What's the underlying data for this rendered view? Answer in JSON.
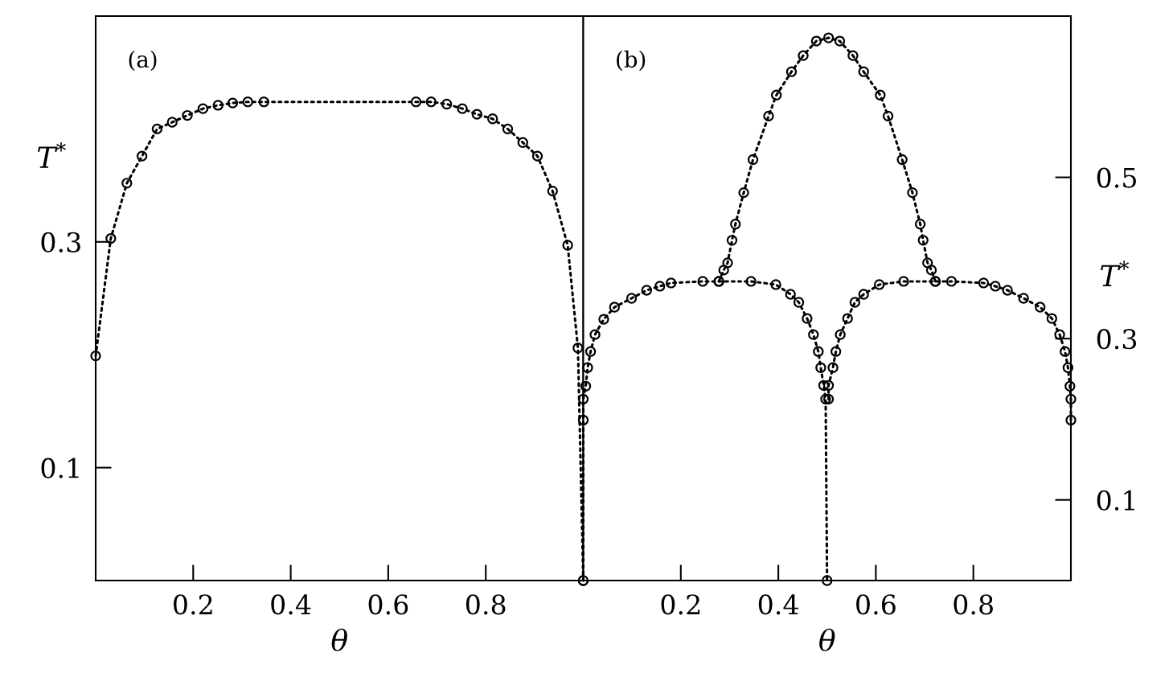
{
  "chart_data": [
    {
      "type": "line",
      "xlabel": "θ",
      "ylabel": "T$^{*}$",
      "annotations": [
        "(a)"
      ],
      "xlim": [
        0,
        1
      ],
      "ylim": [
        0,
        0.5
      ],
      "xticks": [
        0.2,
        0.4,
        0.6,
        0.8
      ],
      "yticks": [
        0.1,
        0.3
      ],
      "marker": "circle",
      "line_style": "dotted",
      "grid": false,
      "legend": false,
      "series": [
        {
          "color": "#000000",
          "x": [
            0,
            0.031,
            0.064,
            0.095,
            0.126,
            0.157,
            0.188,
            0.22,
            0.251,
            0.281,
            0.312,
            0.345,
            0.657,
            0.688,
            0.72,
            0.752,
            0.782,
            0.814,
            0.845,
            0.876,
            0.906,
            0.937,
            0.968,
            0.989,
            1
          ],
          "values": [
            0.199,
            0.303,
            0.352,
            0.376,
            0.4,
            0.406,
            0.412,
            0.418,
            0.421,
            0.423,
            0.424,
            0.424,
            0.424,
            0.424,
            0.422,
            0.418,
            0.413,
            0.409,
            0.4,
            0.388,
            0.376,
            0.345,
            0.297,
            0.206,
            0
          ]
        }
      ]
    },
    {
      "type": "line",
      "xlabel": "θ",
      "ylabel": "T$^{*}$",
      "annotations": [
        "(b)"
      ],
      "xlim": [
        0,
        1
      ],
      "ylim": [
        0,
        0.7
      ],
      "xticks": [
        0.2,
        0.4,
        0.6,
        0.8
      ],
      "yticks": [
        0.1,
        0.3,
        0.5
      ],
      "marker": "circle",
      "line_style": "dotted",
      "grid": false,
      "legend": false,
      "series": [
        {
          "color": "#000000",
          "x": [
            0,
            0,
            0,
            0.005,
            0.009,
            0.015,
            0.024,
            0.042,
            0.064,
            0.099,
            0.13,
            0.157,
            0.18,
            0.245,
            0.278,
            0.344,
            0.395,
            0.425,
            0.442,
            0.459,
            0.472,
            0.482,
            0.487,
            0.493,
            0.497,
            0.5
          ],
          "values": [
            0,
            0.199,
            0.225,
            0.241,
            0.264,
            0.284,
            0.305,
            0.324,
            0.339,
            0.35,
            0.36,
            0.365,
            0.369,
            0.371,
            0.371,
            0.371,
            0.367,
            0.355,
            0.345,
            0.325,
            0.305,
            0.284,
            0.264,
            0.242,
            0.225,
            0
          ]
        },
        {
          "color": "#000000",
          "x": [
            0.503,
            0.503,
            0.512,
            0.518,
            0.527,
            0.542,
            0.557,
            0.575,
            0.607,
            0.657,
            0.722,
            0.755,
            0.821,
            0.845,
            0.87,
            0.903,
            0.937,
            0.961,
            0.977,
            0.988,
            0.994,
            0.998,
            1.0,
            1.0
          ],
          "values": [
            0.225,
            0.242,
            0.264,
            0.284,
            0.305,
            0.325,
            0.345,
            0.355,
            0.367,
            0.371,
            0.371,
            0.371,
            0.369,
            0.365,
            0.36,
            0.35,
            0.339,
            0.325,
            0.305,
            0.284,
            0.264,
            0.241,
            0.225,
            0.199
          ]
        },
        {
          "color": "#000000",
          "x": [
            0.278,
            0.288,
            0.296,
            0.305,
            0.312,
            0.329,
            0.348,
            0.38,
            0.396,
            0.427,
            0.451,
            0.478,
            0.503,
            0.526,
            0.553,
            0.575,
            0.609,
            0.625,
            0.654,
            0.675,
            0.691,
            0.697,
            0.706,
            0.714,
            0.722
          ],
          "values": [
            0.371,
            0.385,
            0.394,
            0.422,
            0.442,
            0.481,
            0.522,
            0.576,
            0.602,
            0.631,
            0.651,
            0.669,
            0.673,
            0.669,
            0.651,
            0.631,
            0.602,
            0.576,
            0.522,
            0.481,
            0.442,
            0.422,
            0.394,
            0.385,
            0.371
          ]
        }
      ]
    }
  ]
}
